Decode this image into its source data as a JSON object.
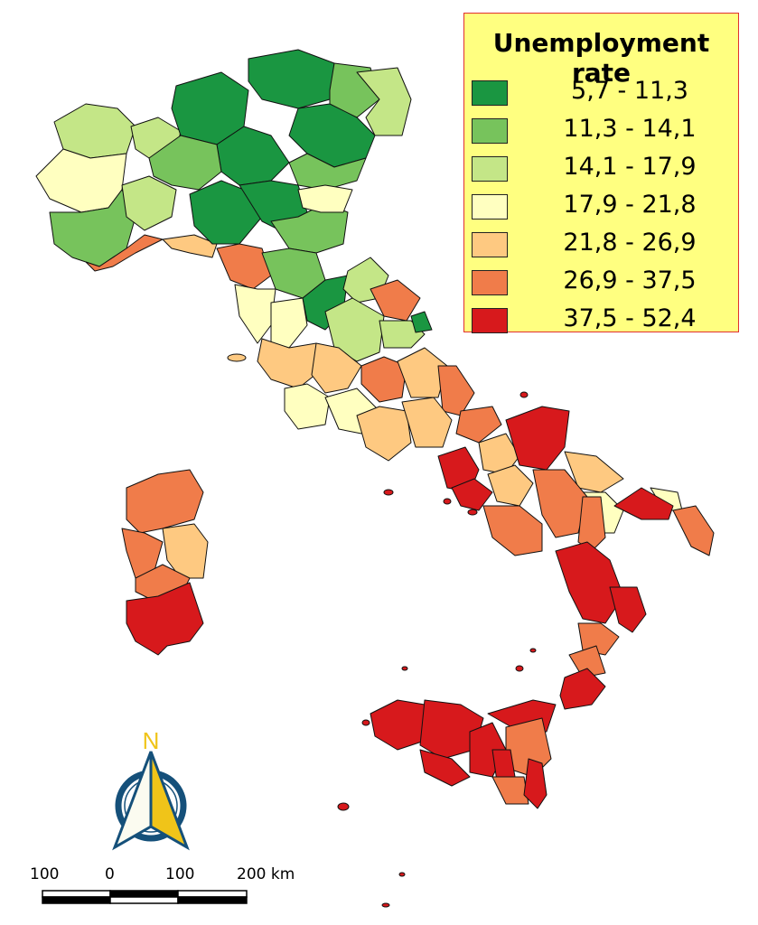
{
  "legend": {
    "title": "Unemployment rate",
    "classes": [
      {
        "label": "5,7 - 11,3",
        "color": "#1a9641"
      },
      {
        "label": "11,3 - 14,1",
        "color": "#77c35c"
      },
      {
        "label": "14,1 - 17,9",
        "color": "#c4e687"
      },
      {
        "label": "17,9 - 21,8",
        "color": "#ffffc0"
      },
      {
        "label": "21,8 - 26,9",
        "color": "#fec981"
      },
      {
        "label": "26,9 - 37,5",
        "color": "#f07c4a"
      },
      {
        "label": "37,5 - 52,4",
        "color": "#d7191c"
      }
    ]
  },
  "north_arrow": {
    "label": "N",
    "color": "#f0c419",
    "ring_color": "#15507a"
  },
  "scale_bar": {
    "labels": [
      "100",
      "0",
      "100",
      "200 km"
    ]
  }
}
